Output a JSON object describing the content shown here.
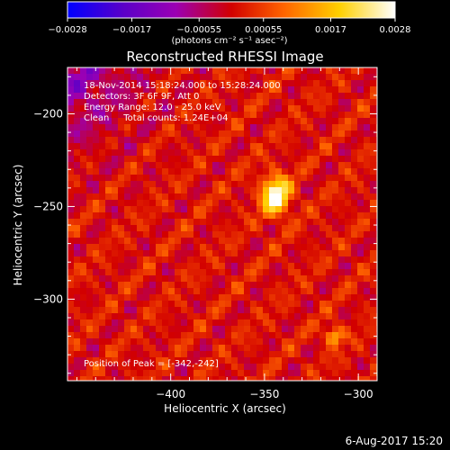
{
  "chart_data": {
    "type": "heatmap",
    "title": "Reconstructed RHESSI Image",
    "xlabel": "Heliocentric X (arcsec)",
    "ylabel": "Heliocentric Y (arcsec)",
    "xlim": [
      -455,
      -290
    ],
    "ylim": [
      -344,
      -175
    ],
    "x_ticks": [
      -400,
      -350,
      -300
    ],
    "x_tick_labels": [
      "−400",
      "−350",
      "−300"
    ],
    "y_ticks": [
      -200,
      -250,
      -300
    ],
    "y_tick_labels": [
      "−200",
      "−250",
      "−300"
    ],
    "grid": false,
    "colorbar": {
      "min": -0.0028,
      "max": 0.0028,
      "ticks": [
        -0.0028,
        -0.0017,
        -0.00055,
        0.00055,
        0.0017,
        0.0028
      ],
      "tick_labels": [
        "−0.0028",
        "−0.0017",
        "−0.00055",
        "0.00055",
        "0.0017",
        "0.0028"
      ],
      "unit_label": "(photons cm⁻² s⁻¹ asec⁻²)",
      "colormap_stops": [
        "#0000ff",
        "#5a00c8",
        "#9b00b4",
        "#d20000",
        "#ff6400",
        "#ffd000",
        "#ffffff"
      ]
    },
    "info_lines": [
      "18-Nov-2014 15:18:24.000 to 15:28:24.000",
      "Detectors: 3F 6F 9F, Att 0",
      "Energy Range: 12.0 - 25.0 keV",
      "Clean     Total counts: 1.24E+04"
    ],
    "peak_text": "Position of Peak = [-342,-242]",
    "sources": [
      {
        "x": -344,
        "y": -244,
        "peak": 0.0028
      },
      {
        "x": -313,
        "y": -320,
        "peak": 0.0017
      }
    ]
  },
  "footer": {
    "date": "6-Aug-2017 15:20"
  }
}
